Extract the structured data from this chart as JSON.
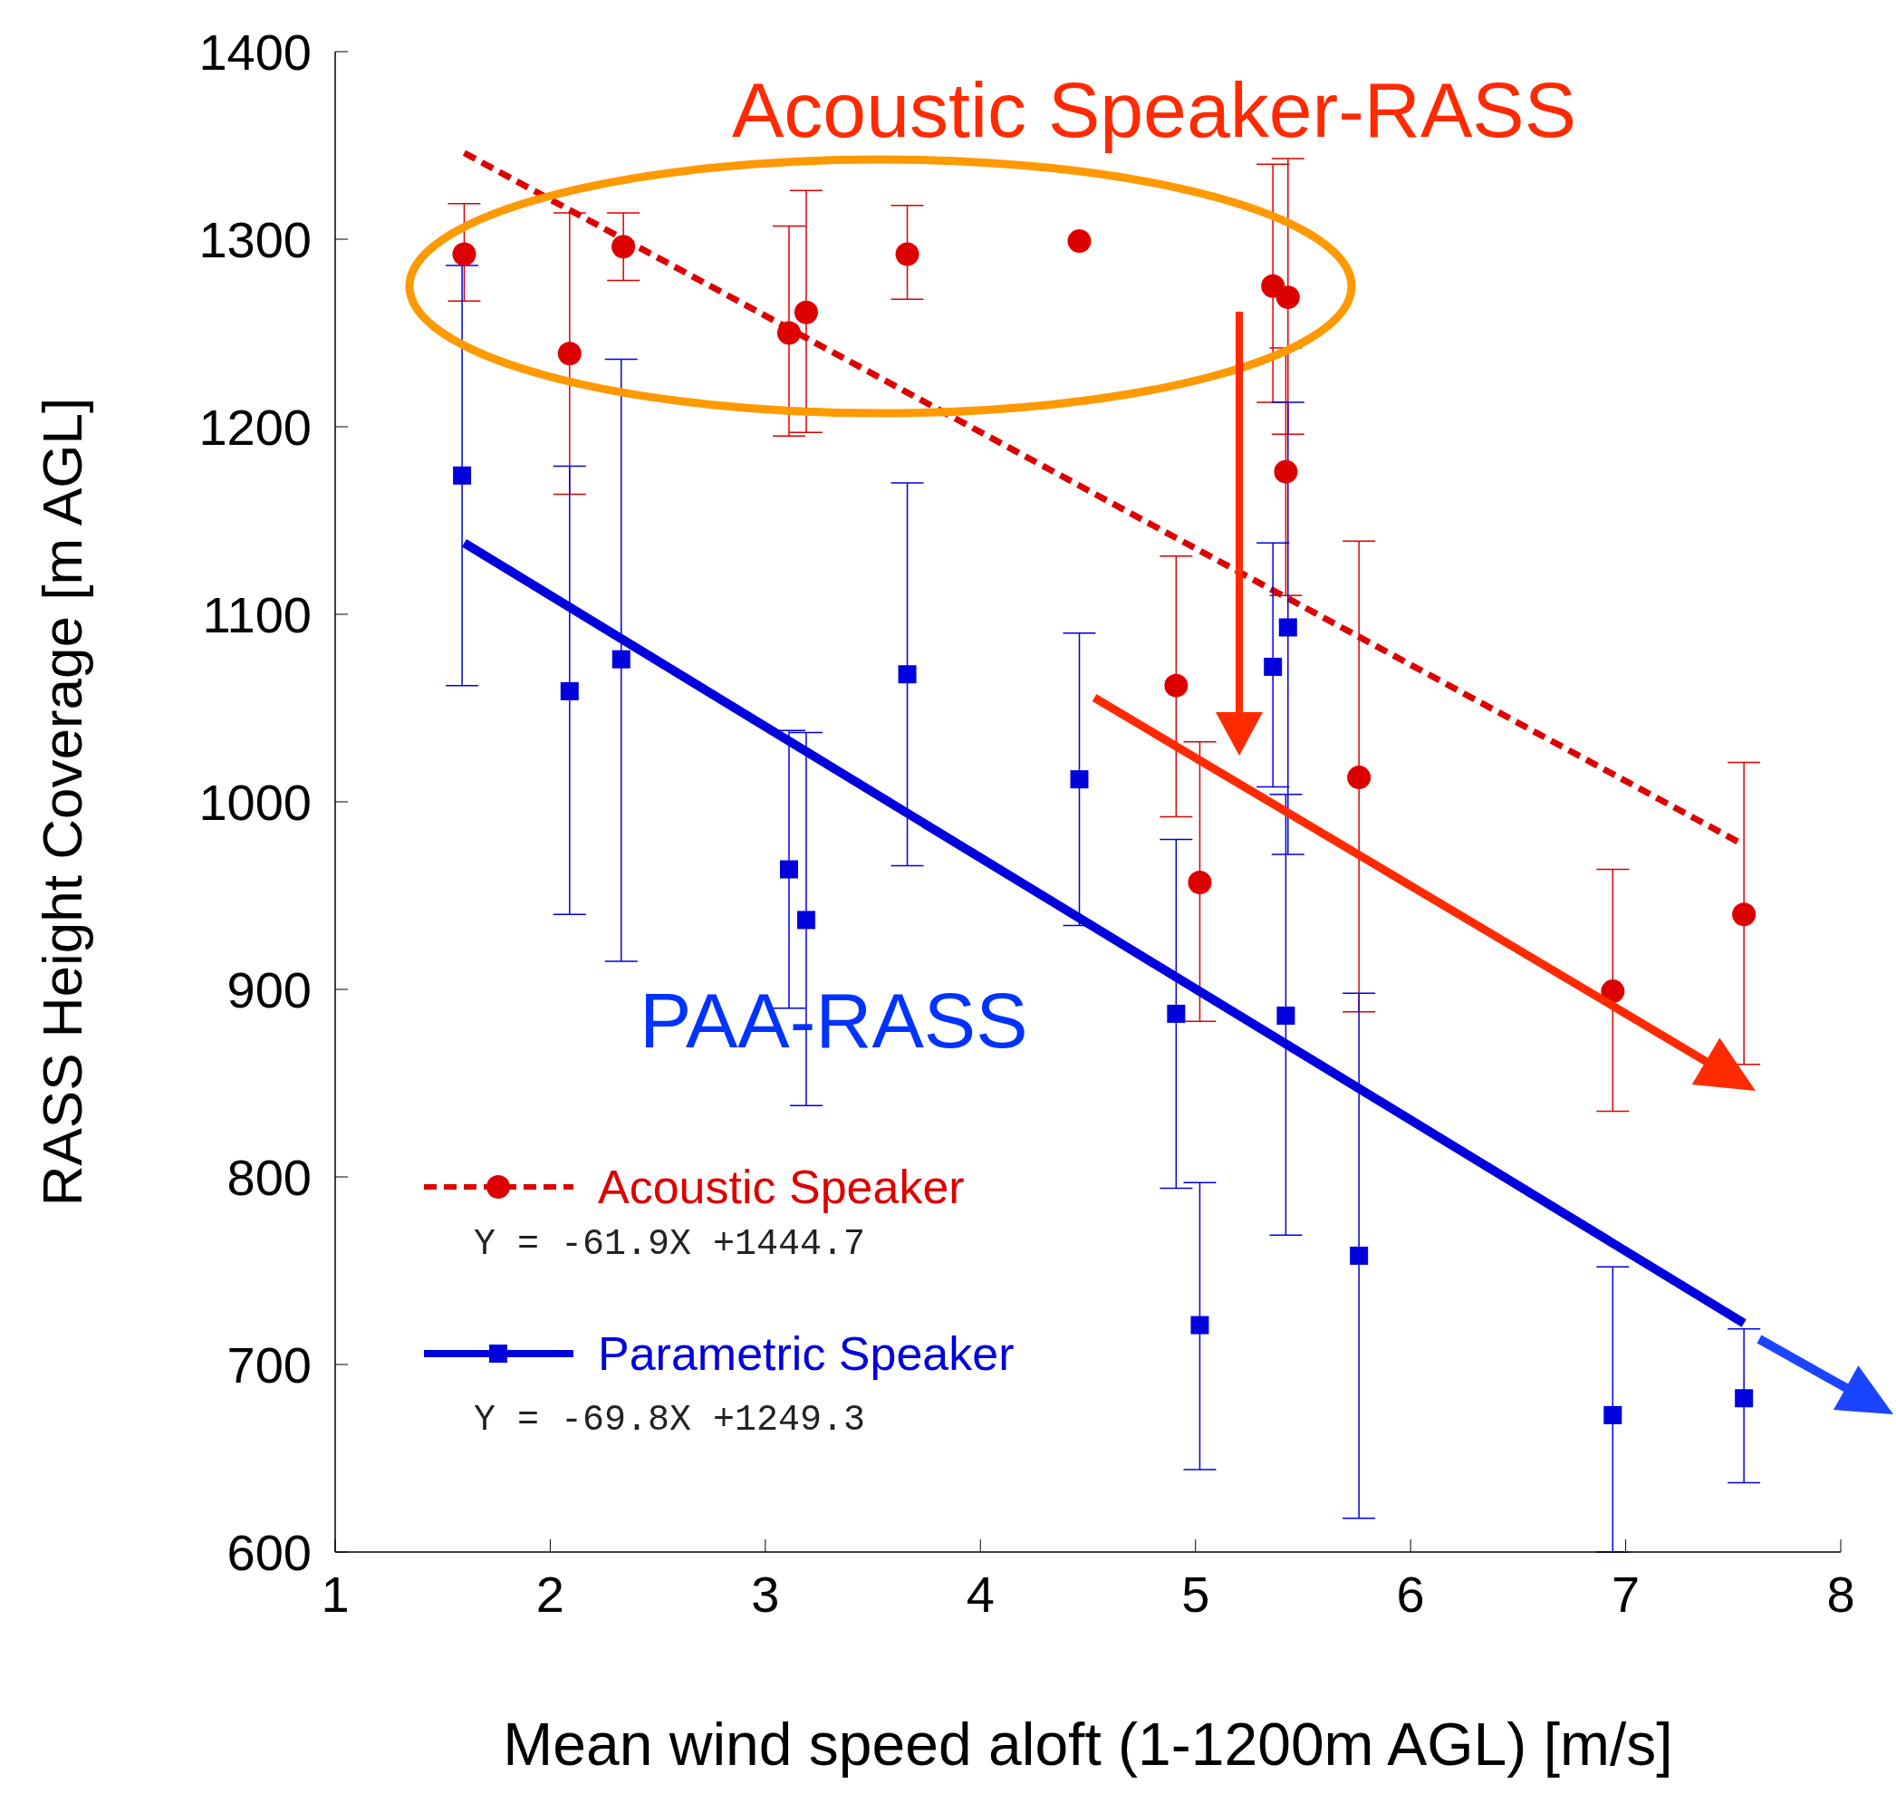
{
  "chart_data": {
    "type": "scatter",
    "xlabel": "Mean wind speed aloft (1-1200m AGL) [m/s]",
    "ylabel": "RASS Height Coverage [m AGL]",
    "xlim": [
      1,
      8
    ],
    "xticks": [
      1,
      2,
      3,
      4,
      5,
      6,
      7,
      8
    ],
    "ylim": [
      600,
      1400
    ],
    "yticks": [
      600,
      700,
      800,
      900,
      1000,
      1100,
      1200,
      1300,
      1400
    ],
    "legend": "bottom left",
    "annotations": [
      "Acoustic Speaker-RASS",
      "PAA-RASS",
      "Y = -61.9X +1444.7",
      "Y = -69.8X +1249.3"
    ],
    "series": [
      {
        "name": "Acoustic Speaker",
        "type": "scatter",
        "marker": "circle",
        "color": "#dd0000",
        "x": [
          1.6,
          2.09,
          2.34,
          3.11,
          3.19,
          3.66,
          4.46,
          4.91,
          5.02,
          5.36,
          5.43,
          5.42,
          5.76,
          6.94,
          7.55
        ],
        "values": [
          1292,
          1239,
          1296,
          1250,
          1261,
          1292,
          1299,
          1062,
          957,
          1275,
          1269,
          1176,
          1013,
          899,
          940
        ],
        "errors": [
          [
            1267,
            1319
          ],
          [
            1164,
            1314
          ],
          [
            1278,
            1314
          ],
          [
            1195,
            1307
          ],
          [
            1197,
            1326
          ],
          [
            1268,
            1318
          ],
          null,
          [
            992,
            1131
          ],
          [
            883,
            1032
          ],
          [
            1213,
            1340
          ],
          [
            1196,
            1343
          ],
          [
            1110,
            1242
          ],
          [
            888,
            1139
          ],
          [
            835,
            964
          ],
          [
            860,
            1021
          ]
        ]
      },
      {
        "type": "line",
        "line_style": "dashed",
        "marker": "none",
        "color": "#dd0000",
        "x": [
          1.6,
          7.55
        ],
        "values": [
          1346,
          977
        ]
      },
      {
        "name": "Parametric Speaker",
        "type": "scatter",
        "marker": "square",
        "color": "#0000dd",
        "x": [
          1.59,
          2.09,
          2.33,
          3.11,
          3.19,
          3.66,
          4.46,
          4.91,
          5.02,
          5.36,
          5.43,
          5.42,
          5.76,
          6.94,
          7.55
        ],
        "values": [
          1174,
          1059,
          1076,
          964,
          937,
          1068,
          1012,
          887,
          721,
          1072,
          1093,
          886,
          758,
          673,
          682
        ],
        "errors": [
          [
            1062,
            1286
          ],
          [
            940,
            1179
          ],
          [
            915,
            1236
          ],
          [
            890,
            1038
          ],
          [
            838,
            1037
          ],
          [
            966,
            1170
          ],
          [
            934,
            1090
          ],
          [
            794,
            980
          ],
          [
            644,
            797
          ],
          [
            1008,
            1138
          ],
          [
            972,
            1213
          ],
          [
            769,
            1004
          ],
          [
            618,
            898
          ],
          [
            600,
            752
          ],
          [
            637,
            719
          ]
        ]
      },
      {
        "type": "line",
        "line_style": "solid",
        "marker": "none",
        "color": "#0000dd",
        "x": [
          1.6,
          7.55
        ],
        "values": [
          1138,
          722
        ]
      }
    ]
  }
}
